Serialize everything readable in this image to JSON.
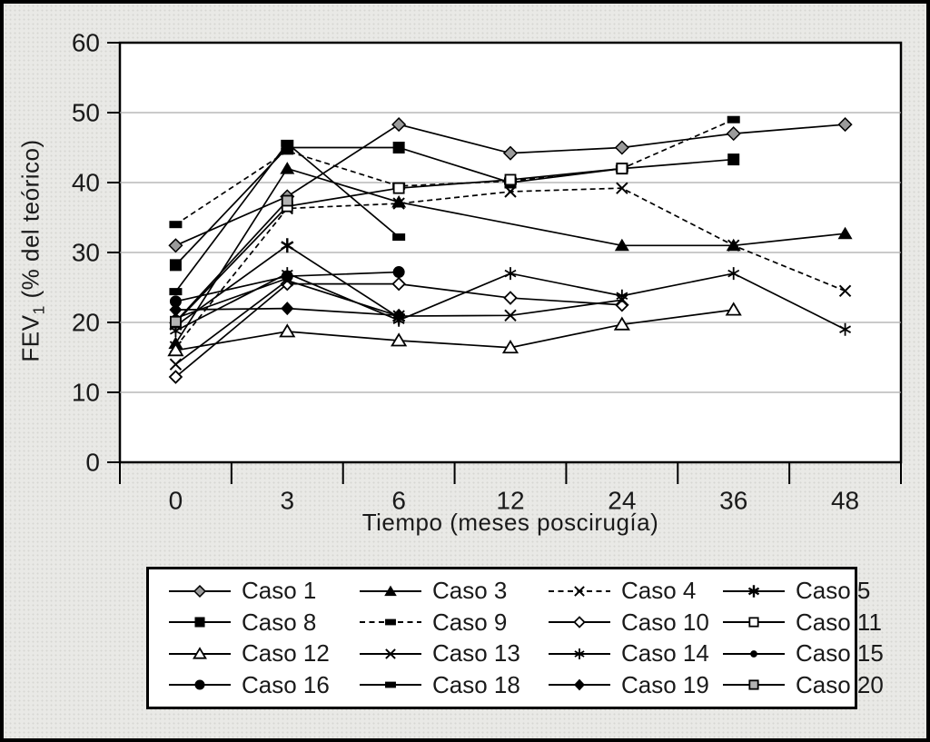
{
  "figure": {
    "background_color": "#e9e9e6",
    "border_color": "#000000",
    "plot_background": "#ffffff",
    "gridline_color": "#ababab"
  },
  "chart_data": {
    "type": "line",
    "title": "",
    "xlabel": "Tiempo (meses poscirugía)",
    "ylabel_prefix": "FEV",
    "ylabel_sub": "1",
    "ylabel_suffix": " (% del teórico)",
    "x_categories": [
      "0",
      "3",
      "6",
      "12",
      "24",
      "36",
      "48"
    ],
    "x_values": [
      0,
      3,
      6,
      12,
      24,
      36,
      48
    ],
    "ylim": [
      0,
      60
    ],
    "yticks": [
      0,
      10,
      20,
      30,
      40,
      50,
      60
    ],
    "grid": true,
    "legend_position": "bottom",
    "line_color": "#000000",
    "gray_fill": "#9b9b9b",
    "series": [
      {
        "name": "Caso 1",
        "marker": "diamond-gray",
        "line": "solid",
        "points": [
          [
            0,
            31
          ],
          [
            3,
            38
          ],
          [
            6,
            48.3
          ],
          [
            12,
            44.2
          ],
          [
            24,
            45
          ],
          [
            36,
            47
          ],
          [
            48,
            48.3
          ]
        ]
      },
      {
        "name": "Caso 3",
        "marker": "triangle-filled",
        "line": "solid",
        "points": [
          [
            0,
            17
          ],
          [
            3,
            42
          ],
          [
            6,
            37.2
          ],
          [
            24,
            31
          ],
          [
            36,
            31
          ],
          [
            48,
            32.7
          ]
        ]
      },
      {
        "name": "Caso 4",
        "marker": "x-cross",
        "line": "dashed",
        "points": [
          [
            0,
            16.5
          ],
          [
            3,
            36.3
          ],
          [
            6,
            37
          ],
          [
            12,
            38.7
          ],
          [
            24,
            39.2
          ],
          [
            36,
            31
          ],
          [
            48,
            24.5
          ]
        ]
      },
      {
        "name": "Caso 5",
        "marker": "asterisk-bold",
        "line": "solid",
        "points": [
          [
            0,
            19.5
          ],
          [
            3,
            31
          ],
          [
            6,
            20.7
          ]
        ]
      },
      {
        "name": "Caso 8",
        "marker": "square-filled",
        "line": "solid",
        "points": [
          [
            0,
            28.2
          ],
          [
            3,
            45
          ],
          [
            6,
            45
          ],
          [
            12,
            40
          ],
          [
            24,
            42
          ],
          [
            36,
            43.3
          ]
        ]
      },
      {
        "name": "Caso 9",
        "marker": "rect-filled",
        "line": "dashed",
        "points": [
          [
            0,
            34
          ],
          [
            3,
            44.5
          ],
          [
            6,
            39.5
          ],
          [
            12,
            40.2
          ],
          [
            24,
            42
          ],
          [
            36,
            49
          ]
        ]
      },
      {
        "name": "Caso 10",
        "marker": "diamond-open",
        "line": "solid",
        "points": [
          [
            0,
            12.2
          ],
          [
            3,
            25.5
          ],
          [
            6,
            25.5
          ],
          [
            12,
            23.5
          ],
          [
            24,
            22.5
          ]
        ]
      },
      {
        "name": "Caso 11",
        "marker": "square-open",
        "line": "solid",
        "points": [
          [
            0,
            20
          ],
          [
            3,
            36.6
          ],
          [
            6,
            39.2
          ],
          [
            12,
            40.4
          ],
          [
            24,
            42
          ]
        ]
      },
      {
        "name": "Caso 12",
        "marker": "triangle-open",
        "line": "solid",
        "points": [
          [
            0,
            16
          ],
          [
            3,
            18.7
          ],
          [
            6,
            17.4
          ],
          [
            12,
            16.4
          ],
          [
            24,
            19.7
          ],
          [
            36,
            21.8
          ]
        ]
      },
      {
        "name": "Caso 13",
        "marker": "x-cross",
        "line": "solid",
        "points": [
          [
            0,
            14
          ],
          [
            3,
            26
          ],
          [
            6,
            20.9
          ],
          [
            12,
            21
          ],
          [
            24,
            23.2
          ]
        ]
      },
      {
        "name": "Caso 14",
        "marker": "asterisk",
        "line": "solid",
        "points": [
          [
            0,
            18.8
          ],
          [
            3,
            27
          ],
          [
            6,
            20.3
          ],
          [
            12,
            27
          ],
          [
            24,
            23.8
          ],
          [
            36,
            27
          ],
          [
            48,
            19
          ]
        ]
      },
      {
        "name": "Caso 15",
        "marker": "circle-filled-small",
        "line": "solid",
        "points": [
          [
            0,
            20.6
          ],
          [
            3,
            26.3
          ]
        ]
      },
      {
        "name": "Caso 16",
        "marker": "circle-filled",
        "line": "solid",
        "points": [
          [
            0,
            23
          ],
          [
            3,
            26.6
          ],
          [
            6,
            27.2
          ]
        ]
      },
      {
        "name": "Caso 18",
        "marker": "rect-filled",
        "line": "solid",
        "points": [
          [
            0,
            24.4
          ],
          [
            3,
            45.6
          ],
          [
            6,
            32.2
          ]
        ]
      },
      {
        "name": "Caso 19",
        "marker": "diamond-filled",
        "line": "solid",
        "points": [
          [
            0,
            21.8
          ],
          [
            3,
            22
          ],
          [
            6,
            21
          ]
        ]
      },
      {
        "name": "Caso 20",
        "marker": "square-gray",
        "line": "solid",
        "points": [
          [
            0,
            20.1
          ],
          [
            3,
            37.4
          ]
        ]
      }
    ]
  }
}
